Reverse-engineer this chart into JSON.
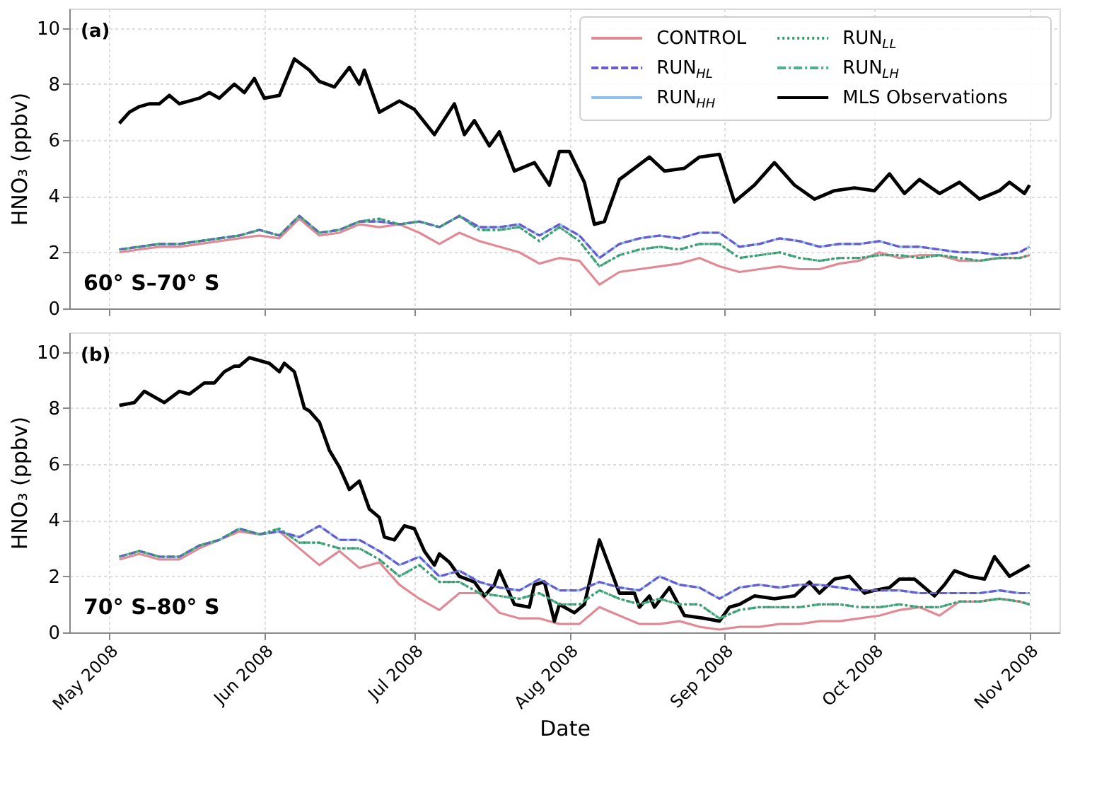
{
  "chart_data": [
    {
      "type": "line",
      "title": null,
      "ylabel": "HNO₃ (ppbv)",
      "annotations": [
        "(a)",
        "60° S–70° S"
      ],
      "legend": "top right",
      "grid": true,
      "tick_labels": "y",
      "xlim": [
        "2008-04-23",
        "2008-11-07"
      ],
      "xticks": [
        {
          "value": "2008-05-01",
          "label": null
        },
        {
          "value": "2008-06-01",
          "label": null
        },
        {
          "value": "2008-07-01",
          "label": null
        },
        {
          "value": "2008-08-01",
          "label": null
        },
        {
          "value": "2008-09-01",
          "label": null
        },
        {
          "value": "2008-10-01",
          "label": null
        },
        {
          "value": "2008-11-01",
          "label": null
        }
      ],
      "ylim": [
        0,
        10.7
      ],
      "yticks": [
        0,
        2,
        4,
        6,
        8,
        10
      ],
      "x": [
        "2008-05-03",
        "2008-05-07",
        "2008-05-11",
        "2008-05-15",
        "2008-05-19",
        "2008-05-23",
        "2008-05-27",
        "2008-05-31",
        "2008-06-04",
        "2008-06-08",
        "2008-06-12",
        "2008-06-16",
        "2008-06-20",
        "2008-06-24",
        "2008-06-28",
        "2008-07-02",
        "2008-07-06",
        "2008-07-10",
        "2008-07-14",
        "2008-07-18",
        "2008-07-22",
        "2008-07-26",
        "2008-07-30",
        "2008-08-03",
        "2008-08-07",
        "2008-08-11",
        "2008-08-15",
        "2008-08-19",
        "2008-08-23",
        "2008-08-27",
        "2008-08-31",
        "2008-09-04",
        "2008-09-08",
        "2008-09-12",
        "2008-09-16",
        "2008-09-20",
        "2008-09-24",
        "2008-09-28",
        "2008-10-02",
        "2008-10-06",
        "2008-10-10",
        "2008-10-14",
        "2008-10-18",
        "2008-10-22",
        "2008-10-26",
        "2008-10-30",
        "2008-11-01"
      ],
      "series": [
        {
          "name": "CONTROL",
          "color": "#e08a96",
          "line_style": "solid",
          "values": [
            2.0,
            2.1,
            2.2,
            2.2,
            2.3,
            2.4,
            2.5,
            2.6,
            2.5,
            3.2,
            2.6,
            2.7,
            3.0,
            2.9,
            3.0,
            2.7,
            2.3,
            2.7,
            2.4,
            2.2,
            2.0,
            1.6,
            1.8,
            1.7,
            0.85,
            1.3,
            1.4,
            1.5,
            1.6,
            1.8,
            1.5,
            1.3,
            1.4,
            1.5,
            1.4,
            1.4,
            1.6,
            1.7,
            2.0,
            1.8,
            1.9,
            1.9,
            1.7,
            1.7,
            1.8,
            1.8,
            1.9
          ]
        },
        {
          "name": "RUN$_{HL}$",
          "color": "#6a5acd",
          "line_style": "dashed",
          "values": [
            2.1,
            2.2,
            2.3,
            2.3,
            2.4,
            2.5,
            2.6,
            2.8,
            2.6,
            3.3,
            2.7,
            2.8,
            3.1,
            3.1,
            3.0,
            3.1,
            2.9,
            3.3,
            2.9,
            2.9,
            3.0,
            2.6,
            3.0,
            2.6,
            1.8,
            2.3,
            2.5,
            2.6,
            2.5,
            2.7,
            2.7,
            2.2,
            2.3,
            2.5,
            2.4,
            2.2,
            2.3,
            2.3,
            2.4,
            2.2,
            2.2,
            2.1,
            2.0,
            2.0,
            1.9,
            2.0,
            2.2
          ]
        },
        {
          "name": "RUN$_{HH}$",
          "color": "#8fc0ec",
          "line_style": "solid",
          "values": [
            2.1,
            2.2,
            2.3,
            2.3,
            2.4,
            2.5,
            2.6,
            2.8,
            2.6,
            3.3,
            2.7,
            2.8,
            3.1,
            3.1,
            3.0,
            3.1,
            2.9,
            3.3,
            2.9,
            2.9,
            3.0,
            2.6,
            3.0,
            2.6,
            1.8,
            2.3,
            2.5,
            2.6,
            2.5,
            2.7,
            2.7,
            2.2,
            2.3,
            2.5,
            2.4,
            2.2,
            2.3,
            2.3,
            2.4,
            2.2,
            2.2,
            2.1,
            2.0,
            2.0,
            1.9,
            2.0,
            2.2
          ]
        },
        {
          "name": "RUN$_{LL}$",
          "color": "#3a9a6a",
          "line_style": "dotted",
          "values": [
            2.1,
            2.2,
            2.3,
            2.3,
            2.4,
            2.5,
            2.6,
            2.8,
            2.6,
            3.3,
            2.7,
            2.8,
            3.1,
            3.2,
            3.0,
            3.1,
            2.9,
            3.3,
            2.8,
            2.8,
            2.9,
            2.4,
            2.9,
            2.4,
            1.5,
            1.9,
            2.1,
            2.2,
            2.1,
            2.3,
            2.3,
            1.8,
            1.9,
            2.0,
            1.8,
            1.7,
            1.8,
            1.8,
            1.9,
            1.9,
            1.8,
            1.9,
            1.8,
            1.7,
            1.8,
            1.8,
            1.9
          ]
        },
        {
          "name": "RUN$_{LH}$",
          "color": "#4fae8e",
          "line_style": "dashdot",
          "values": [
            2.1,
            2.2,
            2.3,
            2.3,
            2.4,
            2.5,
            2.6,
            2.8,
            2.6,
            3.3,
            2.7,
            2.8,
            3.1,
            3.2,
            3.0,
            3.1,
            2.9,
            3.3,
            2.8,
            2.8,
            2.9,
            2.4,
            2.9,
            2.4,
            1.5,
            1.9,
            2.1,
            2.2,
            2.1,
            2.3,
            2.3,
            1.8,
            1.9,
            2.0,
            1.8,
            1.7,
            1.8,
            1.8,
            1.9,
            1.9,
            1.8,
            1.9,
            1.8,
            1.7,
            1.8,
            1.8,
            1.9
          ]
        },
        {
          "name": "MLS Observations",
          "color": "#000000",
          "line_style": "solid",
          "x": [
            "2008-05-03",
            "2008-05-05",
            "2008-05-07",
            "2008-05-09",
            "2008-05-11",
            "2008-05-13",
            "2008-05-15",
            "2008-05-17",
            "2008-05-19",
            "2008-05-21",
            "2008-05-23",
            "2008-05-26",
            "2008-05-28",
            "2008-05-30",
            "2008-06-01",
            "2008-06-04",
            "2008-06-07",
            "2008-06-10",
            "2008-06-12",
            "2008-06-15",
            "2008-06-18",
            "2008-06-20",
            "2008-06-21",
            "2008-06-24",
            "2008-06-28",
            "2008-07-01",
            "2008-07-05",
            "2008-07-09",
            "2008-07-11",
            "2008-07-13",
            "2008-07-16",
            "2008-07-18",
            "2008-07-21",
            "2008-07-25",
            "2008-07-28",
            "2008-07-30",
            "2008-08-01",
            "2008-08-04",
            "2008-08-06",
            "2008-08-08",
            "2008-08-11",
            "2008-08-14",
            "2008-08-17",
            "2008-08-20",
            "2008-08-24",
            "2008-08-27",
            "2008-08-31",
            "2008-09-03",
            "2008-09-07",
            "2008-09-11",
            "2008-09-15",
            "2008-09-19",
            "2008-09-23",
            "2008-09-27",
            "2008-10-01",
            "2008-10-04",
            "2008-10-07",
            "2008-10-10",
            "2008-10-14",
            "2008-10-18",
            "2008-10-22",
            "2008-10-26",
            "2008-10-28",
            "2008-10-31",
            "2008-11-01"
          ],
          "values": [
            6.6,
            7.0,
            7.2,
            7.3,
            7.3,
            7.6,
            7.3,
            7.4,
            7.5,
            7.7,
            7.5,
            8.0,
            7.7,
            8.2,
            7.5,
            7.6,
            8.9,
            8.5,
            8.1,
            7.9,
            8.6,
            8.0,
            8.5,
            7.0,
            7.4,
            7.1,
            6.2,
            7.3,
            6.2,
            6.7,
            5.8,
            6.3,
            4.9,
            5.2,
            4.4,
            5.6,
            5.6,
            4.5,
            3.0,
            3.1,
            4.6,
            5.0,
            5.4,
            4.9,
            5.0,
            5.4,
            5.5,
            3.8,
            4.4,
            5.2,
            4.4,
            3.9,
            4.2,
            4.3,
            4.2,
            4.8,
            4.1,
            4.6,
            4.1,
            4.5,
            3.9,
            4.2,
            4.5,
            4.1,
            4.4
          ]
        }
      ]
    },
    {
      "type": "line",
      "xlabel": "Date",
      "ylabel": "HNO₃ (ppbv)",
      "annotations": [
        "(b)",
        "70° S–80° S"
      ],
      "grid": true,
      "xlim": [
        "2008-04-23",
        "2008-11-07"
      ],
      "xticks": [
        {
          "value": "2008-05-01",
          "label": "May 2008"
        },
        {
          "value": "2008-06-01",
          "label": "Jun 2008"
        },
        {
          "value": "2008-07-01",
          "label": "Jul 2008"
        },
        {
          "value": "2008-08-01",
          "label": "Aug 2008"
        },
        {
          "value": "2008-09-01",
          "label": "Sep 2008"
        },
        {
          "value": "2008-10-01",
          "label": "Oct 2008"
        },
        {
          "value": "2008-11-01",
          "label": "Nov 2008"
        }
      ],
      "ylim": [
        0,
        10.7
      ],
      "yticks": [
        0,
        2,
        4,
        6,
        8,
        10
      ],
      "x": [
        "2008-05-03",
        "2008-05-07",
        "2008-05-11",
        "2008-05-15",
        "2008-05-19",
        "2008-05-23",
        "2008-05-27",
        "2008-05-31",
        "2008-06-04",
        "2008-06-08",
        "2008-06-12",
        "2008-06-16",
        "2008-06-20",
        "2008-06-24",
        "2008-06-28",
        "2008-07-02",
        "2008-07-06",
        "2008-07-10",
        "2008-07-14",
        "2008-07-18",
        "2008-07-22",
        "2008-07-26",
        "2008-07-30",
        "2008-08-03",
        "2008-08-07",
        "2008-08-11",
        "2008-08-15",
        "2008-08-19",
        "2008-08-23",
        "2008-08-27",
        "2008-08-31",
        "2008-09-04",
        "2008-09-08",
        "2008-09-12",
        "2008-09-16",
        "2008-09-20",
        "2008-09-24",
        "2008-09-28",
        "2008-10-02",
        "2008-10-06",
        "2008-10-10",
        "2008-10-14",
        "2008-10-18",
        "2008-10-22",
        "2008-10-26",
        "2008-10-30",
        "2008-11-01"
      ],
      "series": [
        {
          "color": "#e08a96",
          "line_style": "solid",
          "values": [
            2.6,
            2.8,
            2.6,
            2.6,
            3.0,
            3.3,
            3.6,
            3.5,
            3.6,
            3.0,
            2.4,
            2.9,
            2.3,
            2.5,
            1.7,
            1.2,
            0.8,
            1.4,
            1.4,
            0.7,
            0.5,
            0.5,
            0.3,
            0.3,
            0.9,
            0.6,
            0.3,
            0.3,
            0.4,
            0.2,
            0.1,
            0.2,
            0.2,
            0.3,
            0.3,
            0.4,
            0.4,
            0.5,
            0.6,
            0.8,
            0.9,
            0.6,
            1.1,
            1.1,
            1.2,
            1.1,
            1.0
          ]
        },
        {
          "color": "#6a5acd",
          "line_style": "dashed",
          "values": [
            2.7,
            2.9,
            2.7,
            2.7,
            3.1,
            3.3,
            3.7,
            3.5,
            3.6,
            3.4,
            3.8,
            3.3,
            3.3,
            2.9,
            2.4,
            2.7,
            2.0,
            2.2,
            1.8,
            1.6,
            1.5,
            1.9,
            1.5,
            1.5,
            1.8,
            1.6,
            1.5,
            2.0,
            1.7,
            1.6,
            1.2,
            1.6,
            1.7,
            1.6,
            1.7,
            1.7,
            1.6,
            1.5,
            1.5,
            1.5,
            1.4,
            1.4,
            1.4,
            1.4,
            1.5,
            1.4,
            1.4
          ]
        },
        {
          "color": "#8fc0ec",
          "line_style": "solid",
          "values": [
            2.7,
            2.9,
            2.7,
            2.7,
            3.1,
            3.3,
            3.7,
            3.5,
            3.6,
            3.4,
            3.8,
            3.3,
            3.3,
            2.9,
            2.4,
            2.7,
            2.0,
            2.2,
            1.8,
            1.6,
            1.5,
            1.9,
            1.5,
            1.5,
            1.8,
            1.6,
            1.5,
            2.0,
            1.7,
            1.6,
            1.2,
            1.6,
            1.7,
            1.6,
            1.7,
            1.7,
            1.6,
            1.5,
            1.5,
            1.5,
            1.4,
            1.4,
            1.4,
            1.4,
            1.5,
            1.4,
            1.4
          ]
        },
        {
          "color": "#3a9a6a",
          "line_style": "dotted",
          "values": [
            2.7,
            2.9,
            2.7,
            2.7,
            3.1,
            3.3,
            3.7,
            3.5,
            3.7,
            3.2,
            3.2,
            3.0,
            3.0,
            2.6,
            2.0,
            2.4,
            1.8,
            1.8,
            1.4,
            1.3,
            1.2,
            1.4,
            1.0,
            1.0,
            1.5,
            1.2,
            1.0,
            1.2,
            1.0,
            1.0,
            0.5,
            0.8,
            0.9,
            0.9,
            0.9,
            1.0,
            1.0,
            0.9,
            0.9,
            1.0,
            0.9,
            0.9,
            1.1,
            1.1,
            1.2,
            1.1,
            1.0
          ]
        },
        {
          "color": "#4fae8e",
          "line_style": "dashdot",
          "values": [
            2.7,
            2.9,
            2.7,
            2.7,
            3.1,
            3.3,
            3.7,
            3.5,
            3.7,
            3.2,
            3.2,
            3.0,
            3.0,
            2.6,
            2.0,
            2.4,
            1.8,
            1.8,
            1.4,
            1.3,
            1.2,
            1.4,
            1.0,
            1.0,
            1.5,
            1.2,
            1.0,
            1.2,
            1.0,
            1.0,
            0.5,
            0.8,
            0.9,
            0.9,
            0.9,
            1.0,
            1.0,
            0.9,
            0.9,
            1.0,
            0.9,
            0.9,
            1.1,
            1.1,
            1.2,
            1.1,
            1.0
          ]
        },
        {
          "color": "#000000",
          "line_style": "solid",
          "x": [
            "2008-05-03",
            "2008-05-06",
            "2008-05-08",
            "2008-05-12",
            "2008-05-15",
            "2008-05-17",
            "2008-05-20",
            "2008-05-22",
            "2008-05-24",
            "2008-05-26",
            "2008-05-27",
            "2008-05-29",
            "2008-05-31",
            "2008-06-02",
            "2008-06-04",
            "2008-06-05",
            "2008-06-07",
            "2008-06-09",
            "2008-06-10",
            "2008-06-12",
            "2008-06-14",
            "2008-06-16",
            "2008-06-18",
            "2008-06-20",
            "2008-06-22",
            "2008-06-24",
            "2008-06-25",
            "2008-06-27",
            "2008-06-29",
            "2008-07-01",
            "2008-07-03",
            "2008-07-05",
            "2008-07-06",
            "2008-07-08",
            "2008-07-10",
            "2008-07-13",
            "2008-07-15",
            "2008-07-17",
            "2008-07-18",
            "2008-07-21",
            "2008-07-24",
            "2008-07-25",
            "2008-07-27",
            "2008-07-29",
            "2008-07-30",
            "2008-08-02",
            "2008-08-04",
            "2008-08-07",
            "2008-08-11",
            "2008-08-14",
            "2008-08-15",
            "2008-08-17",
            "2008-08-18",
            "2008-08-21",
            "2008-08-24",
            "2008-08-28",
            "2008-08-31",
            "2008-09-02",
            "2008-09-04",
            "2008-09-07",
            "2008-09-11",
            "2008-09-15",
            "2008-09-18",
            "2008-09-20",
            "2008-09-23",
            "2008-09-26",
            "2008-09-29",
            "2008-10-01",
            "2008-10-04",
            "2008-10-06",
            "2008-10-09",
            "2008-10-13",
            "2008-10-15",
            "2008-10-17",
            "2008-10-20",
            "2008-10-23",
            "2008-10-25",
            "2008-10-28",
            "2008-11-01"
          ],
          "values": [
            8.1,
            8.2,
            8.6,
            8.2,
            8.6,
            8.5,
            8.9,
            8.9,
            9.3,
            9.5,
            9.5,
            9.8,
            9.7,
            9.6,
            9.3,
            9.6,
            9.3,
            8.0,
            7.9,
            7.5,
            6.5,
            5.9,
            5.1,
            5.4,
            4.4,
            4.1,
            3.4,
            3.3,
            3.8,
            3.7,
            2.9,
            2.4,
            2.8,
            2.5,
            2.0,
            1.8,
            1.3,
            1.7,
            2.2,
            1.0,
            0.9,
            1.7,
            1.8,
            0.4,
            1.0,
            0.7,
            1.0,
            3.3,
            1.4,
            1.4,
            0.9,
            1.3,
            0.9,
            1.6,
            0.6,
            0.5,
            0.4,
            0.9,
            1.0,
            1.3,
            1.2,
            1.3,
            1.8,
            1.4,
            1.9,
            2.0,
            1.4,
            1.5,
            1.6,
            1.9,
            1.9,
            1.3,
            1.7,
            2.2,
            2.0,
            1.9,
            2.7,
            2.0,
            2.4
          ]
        }
      ]
    }
  ]
}
